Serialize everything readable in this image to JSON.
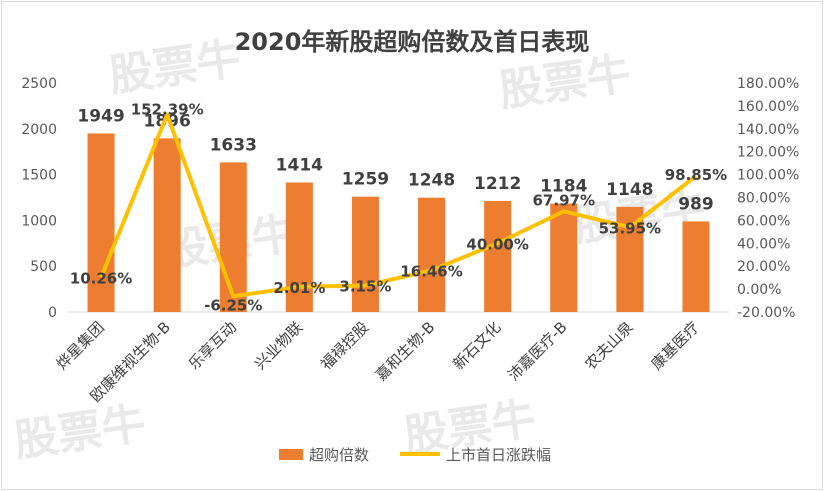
{
  "chart_data": {
    "type": "bar",
    "title": "2020年新股超购倍数及首日表现",
    "categories": [
      "烨星集团",
      "欧康维视生物-B",
      "乐享互动",
      "兴业物联",
      "福禄控股",
      "嘉和生物-B",
      "新石文化",
      "沛嘉医疗-B",
      "农夫山泉",
      "康基医疗"
    ],
    "series": [
      {
        "name": "超购倍数",
        "type": "bar",
        "axis": "left",
        "color": "#ed7d31",
        "values": [
          1949,
          1896,
          1633,
          1414,
          1259,
          1248,
          1212,
          1184,
          1148,
          989
        ],
        "labels": [
          "1949",
          "1896",
          "1633",
          "1414",
          "1259",
          "1248",
          "1212",
          "1184",
          "1148",
          "989"
        ]
      },
      {
        "name": "上市首日涨跌幅",
        "type": "line",
        "axis": "right",
        "color": "#ffc000",
        "values": [
          10.26,
          152.39,
          -6.25,
          2.01,
          3.15,
          16.46,
          40.0,
          67.97,
          53.95,
          98.85
        ],
        "labels": [
          "10.26%",
          "152.39%",
          "-6.25%",
          "2.01%",
          "3.15%",
          "16.46%",
          "40.00%",
          "67.97%",
          "53.95%",
          "98.85%"
        ]
      }
    ],
    "y_left": {
      "min": 0,
      "max": 2500,
      "step": 500,
      "ticks": [
        "0",
        "500",
        "1000",
        "1500",
        "2000",
        "2500"
      ]
    },
    "y_right": {
      "min": -20,
      "max": 180,
      "step": 20,
      "ticks": [
        "-20.00%",
        "0.00%",
        "20.00%",
        "40.00%",
        "60.00%",
        "80.00%",
        "100.00%",
        "120.00%",
        "140.00%",
        "160.00%",
        "180.00%"
      ]
    },
    "grid": false,
    "legend": "bottom",
    "xlabel": "",
    "ylabel": ""
  },
  "watermark": "股票牛"
}
